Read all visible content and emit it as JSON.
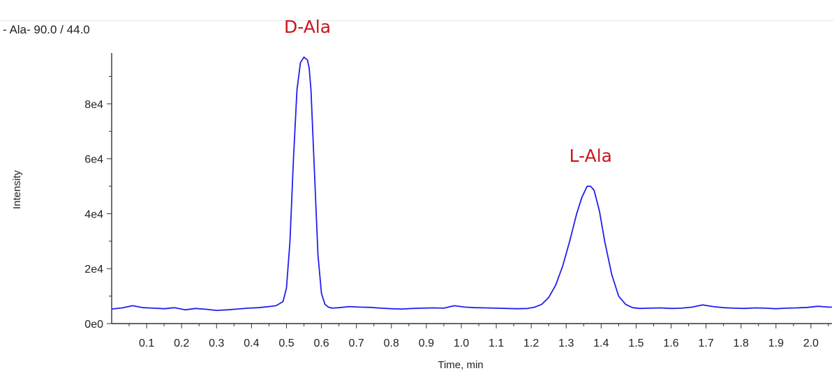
{
  "chart_data": {
    "type": "line",
    "title": "- Ala- 90.0 / 44.0",
    "xlabel": "Time, min",
    "ylabel": "Intensity",
    "xlim": [
      0.0,
      2.06
    ],
    "ylim": [
      0,
      98000
    ],
    "x_ticks": [
      0.1,
      0.2,
      0.3,
      0.4,
      0.5,
      0.6,
      0.7,
      0.8,
      0.9,
      1.0,
      1.1,
      1.2,
      1.3,
      1.4,
      1.5,
      1.6,
      1.7,
      1.8,
      1.9,
      2.0
    ],
    "x_tick_labels": [
      "0.1",
      "0.2",
      "0.3",
      "0.4",
      "0.5",
      "0.6",
      "0.7",
      "0.8",
      "0.9",
      "1.0",
      "1.1",
      "1.2",
      "1.3",
      "1.4",
      "1.5",
      "1.6",
      "1.7",
      "1.8",
      "1.9",
      "2.0"
    ],
    "y_ticks": [
      0,
      20000,
      40000,
      60000,
      80000
    ],
    "y_tick_labels": [
      "0e0",
      "2e4",
      "4e4",
      "6e4",
      "8e4"
    ],
    "grid": false,
    "line_color": "#1f1ff0",
    "annotation_color": "#c8161d",
    "annotations": [
      {
        "text": "D-Ala",
        "x": 0.56,
        "y": 97000
      },
      {
        "text": "L-Ala",
        "x": 1.37,
        "y": 50000
      }
    ],
    "series": [
      {
        "x": [
          0.0,
          0.03,
          0.06,
          0.09,
          0.12,
          0.15,
          0.18,
          0.21,
          0.24,
          0.27,
          0.3,
          0.33,
          0.36,
          0.39,
          0.42,
          0.45,
          0.47,
          0.49,
          0.5,
          0.51,
          0.52,
          0.53,
          0.54,
          0.55,
          0.56,
          0.565,
          0.57,
          0.58,
          0.59,
          0.6,
          0.61,
          0.62,
          0.63,
          0.65,
          0.68,
          0.71,
          0.74,
          0.77,
          0.8,
          0.83,
          0.86,
          0.89,
          0.92,
          0.95,
          0.98,
          1.01,
          1.04,
          1.07,
          1.1,
          1.13,
          1.16,
          1.19,
          1.21,
          1.23,
          1.25,
          1.27,
          1.29,
          1.31,
          1.33,
          1.345,
          1.36,
          1.37,
          1.38,
          1.395,
          1.41,
          1.43,
          1.45,
          1.47,
          1.49,
          1.51,
          1.54,
          1.57,
          1.6,
          1.63,
          1.66,
          1.69,
          1.72,
          1.75,
          1.78,
          1.81,
          1.84,
          1.87,
          1.9,
          1.93,
          1.96,
          1.99,
          2.02,
          2.05,
          2.06
        ],
        "y": [
          5300,
          5700,
          6500,
          5800,
          5600,
          5400,
          5800,
          5000,
          5500,
          5200,
          4800,
          5000,
          5300,
          5600,
          5800,
          6200,
          6500,
          8000,
          13000,
          30000,
          60000,
          85000,
          95000,
          97000,
          96000,
          93000,
          85000,
          55000,
          25000,
          11000,
          7000,
          6000,
          5600,
          5800,
          6200,
          6000,
          5900,
          5600,
          5400,
          5300,
          5500,
          5600,
          5700,
          5600,
          6500,
          6000,
          5800,
          5700,
          5600,
          5500,
          5400,
          5500,
          6000,
          7000,
          9500,
          14000,
          21000,
          30000,
          40000,
          46000,
          50000,
          50000,
          48500,
          41000,
          30000,
          18000,
          10000,
          7000,
          5800,
          5500,
          5600,
          5700,
          5500,
          5600,
          6000,
          6800,
          6200,
          5800,
          5600,
          5500,
          5700,
          5600,
          5400,
          5600,
          5700,
          5900,
          6300,
          6000,
          6000
        ]
      }
    ]
  }
}
